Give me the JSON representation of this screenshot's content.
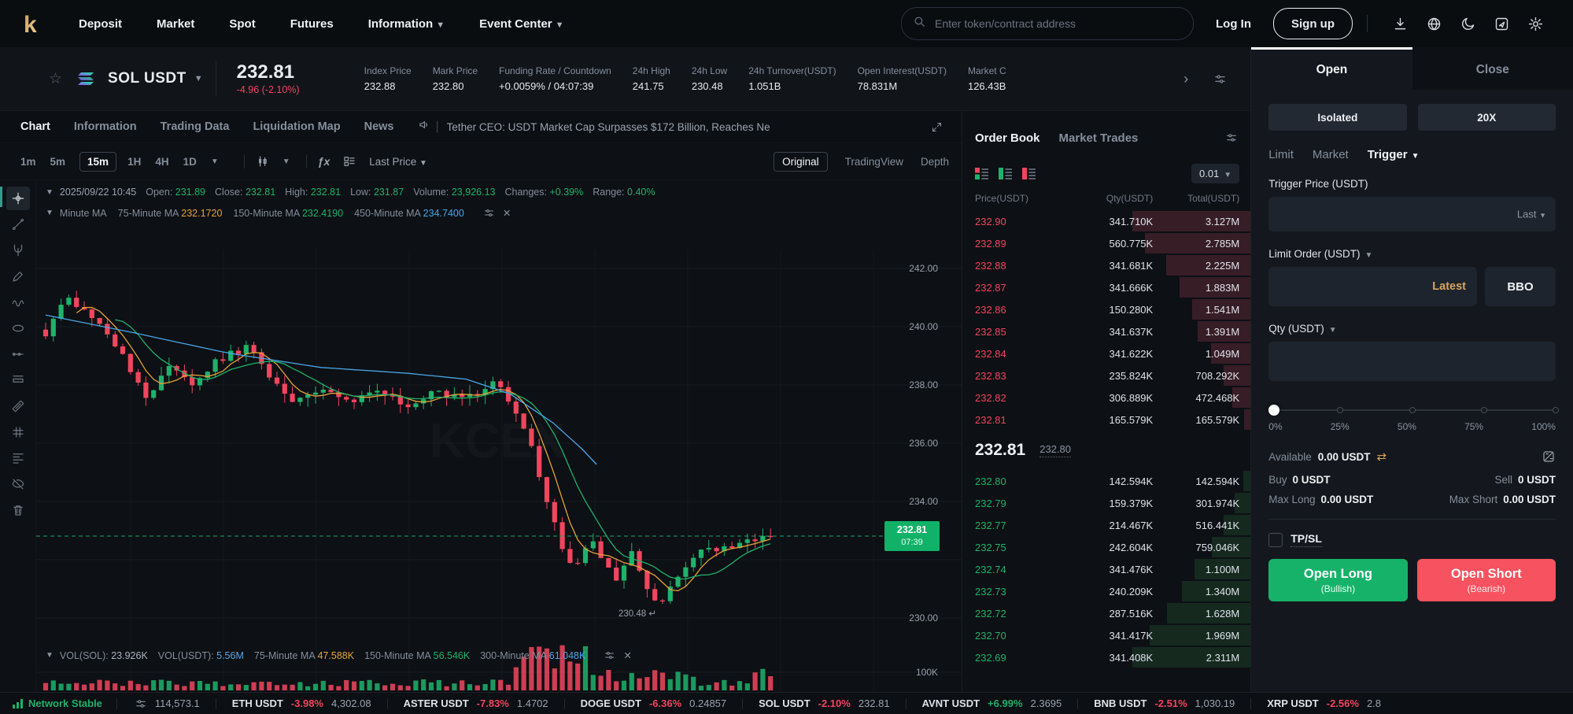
{
  "nav": {
    "brand": "KCEX",
    "menu": [
      {
        "label": "Deposit",
        "caret": false
      },
      {
        "label": "Market",
        "caret": false
      },
      {
        "label": "Spot",
        "caret": false
      },
      {
        "label": "Futures",
        "caret": false
      },
      {
        "label": "Information",
        "caret": true
      },
      {
        "label": "Event Center",
        "caret": true
      }
    ],
    "search_placeholder": "Enter token/contract address",
    "login_label": "Log In",
    "signup_label": "Sign up",
    "icons": [
      "download-icon",
      "language-globe-icon",
      "theme-moon-icon",
      "tutorial-icon",
      "settings-gear-icon"
    ]
  },
  "ticker": {
    "pair": "SOL USDT",
    "price": "232.81",
    "change": "-4.96 (-2.10%)",
    "stats": [
      {
        "label": "Index Price",
        "value": "232.88"
      },
      {
        "label": "Mark Price",
        "value": "232.80"
      },
      {
        "label": "Funding Rate / Countdown",
        "value": "+0.0059% / 04:07:39"
      },
      {
        "label": "24h High",
        "value": "241.75"
      },
      {
        "label": "24h Low",
        "value": "230.48"
      },
      {
        "label": "24h Turnover(USDT)",
        "value": "1.051B"
      },
      {
        "label": "Open Interest(USDT)",
        "value": "78.831M"
      },
      {
        "label": "Market C",
        "value": "126.43B"
      }
    ]
  },
  "chart": {
    "tabs": [
      "Chart",
      "Information",
      "Trading Data",
      "Liquidation Map",
      "News"
    ],
    "active_tab": "Chart",
    "news_text": "Tether CEO: USDT Market Cap Surpasses $172 Billion, Reaches Ne",
    "intervals": [
      "1m",
      "5m",
      "15m",
      "1H",
      "4H",
      "1D"
    ],
    "active_interval": "15m",
    "last_price_label": "Last Price",
    "view_modes": [
      "Original",
      "TradingView",
      "Depth"
    ],
    "active_view": "Original",
    "info": {
      "date": "2025/09/22 10:45",
      "items": [
        {
          "label": "Open:",
          "value": "231.89"
        },
        {
          "label": "Close:",
          "value": "232.81"
        },
        {
          "label": "High:",
          "value": "232.81"
        },
        {
          "label": "Low:",
          "value": "231.87"
        },
        {
          "label": "Volume:",
          "value": "23,926.13"
        },
        {
          "label": "Changes:",
          "value": "+0.39%"
        },
        {
          "label": "Range:",
          "value": "0.40%"
        }
      ]
    },
    "ma_row": [
      {
        "label": "Minute MA",
        "value": "",
        "color": ""
      },
      {
        "label": "75-Minute MA",
        "value": "232.1720",
        "color": "#e7a23b"
      },
      {
        "label": "150-Minute MA",
        "value": "232.4190",
        "color": "#1fb26b"
      },
      {
        "label": "450-Minute MA",
        "value": "234.7400",
        "color": "#49a7e9"
      }
    ],
    "vol_row": [
      {
        "label": "VOL(SOL):",
        "value": "23.926K",
        "color": "#aab2be"
      },
      {
        "label": "VOL(USDT):",
        "value": "5.56M",
        "color": "#58a6e6"
      },
      {
        "label": "75-Minute MA",
        "value": "47.588K",
        "color": "#e7a23b"
      },
      {
        "label": "150-Minute MA",
        "value": "56.546K",
        "color": "#1fb26b"
      },
      {
        "label": "300-Minute MA",
        "value": "61.048K",
        "color": "#49a7e9"
      }
    ],
    "watermark": "KCEX",
    "chart_data": {
      "type": "candlestick",
      "interval": "15m",
      "price_axis_ticks": [
        "242.00",
        "240.00",
        "238.00",
        "236.00",
        "234.00",
        "230.00"
      ],
      "volume_axis_tick": "100K",
      "current_price_badge": {
        "price": "232.81",
        "time": "07:39"
      },
      "low_marker": "230.48",
      "ylim": [
        229.5,
        242.5
      ],
      "candles": 95,
      "price_anchors": [
        [
          0,
          239.8
        ],
        [
          0.03,
          241.0
        ],
        [
          0.07,
          240.3
        ],
        [
          0.1,
          239.2
        ],
        [
          0.14,
          237.6
        ],
        [
          0.17,
          238.6
        ],
        [
          0.2,
          238.0
        ],
        [
          0.24,
          238.9
        ],
        [
          0.28,
          239.3
        ],
        [
          0.31,
          238.2
        ],
        [
          0.34,
          237.4
        ],
        [
          0.38,
          237.9
        ],
        [
          0.42,
          237.5
        ],
        [
          0.46,
          237.7
        ],
        [
          0.5,
          237.3
        ],
        [
          0.54,
          237.8
        ],
        [
          0.58,
          237.5
        ],
        [
          0.62,
          238.1
        ],
        [
          0.65,
          237.0
        ],
        [
          0.67,
          235.8
        ],
        [
          0.69,
          234.2
        ],
        [
          0.71,
          232.6
        ],
        [
          0.73,
          231.6
        ],
        [
          0.75,
          232.8
        ],
        [
          0.77,
          232.0
        ],
        [
          0.79,
          231.2
        ],
        [
          0.81,
          232.4
        ],
        [
          0.83,
          230.9
        ],
        [
          0.85,
          230.5
        ],
        [
          0.87,
          231.3
        ],
        [
          0.9,
          232.2
        ],
        [
          1.0,
          232.81
        ]
      ],
      "ma450_anchors": [
        [
          0,
          240.4
        ],
        [
          0.12,
          239.8
        ],
        [
          0.25,
          239.1
        ],
        [
          0.38,
          238.6
        ],
        [
          0.5,
          238.4
        ],
        [
          0.58,
          238.2
        ],
        [
          0.64,
          237.7
        ],
        [
          0.7,
          236.7
        ],
        [
          0.74,
          235.8
        ],
        [
          0.78,
          234.74
        ]
      ],
      "last_close": 232.81,
      "session_low": 230.48
    },
    "rail_tools": [
      "crosshair",
      "trendline",
      "pitchfork",
      "brush",
      "wave",
      "ellipse",
      "ray",
      "long-position",
      "ruler",
      "pattern",
      "fibonacci",
      "eye-off",
      "trash"
    ]
  },
  "orderbook": {
    "tabs": [
      "Order Book",
      "Market Trades"
    ],
    "active_tab": "Order Book",
    "precision": "0.01",
    "headers": [
      "Price(USDT)",
      "Qty(USDT)",
      "Total(USDT)"
    ],
    "asks": [
      [
        "232.90",
        "341.710K",
        "3.127M"
      ],
      [
        "232.89",
        "560.775K",
        "2.785M"
      ],
      [
        "232.88",
        "341.681K",
        "2.225M"
      ],
      [
        "232.87",
        "341.666K",
        "1.883M"
      ],
      [
        "232.86",
        "150.280K",
        "1.541M"
      ],
      [
        "232.85",
        "341.637K",
        "1.391M"
      ],
      [
        "232.84",
        "341.622K",
        "1.049M"
      ],
      [
        "232.83",
        "235.824K",
        "708.292K"
      ],
      [
        "232.82",
        "306.889K",
        "472.468K"
      ],
      [
        "232.81",
        "165.579K",
        "165.579K"
      ]
    ],
    "mid": {
      "last": "232.81",
      "mark": "232.80"
    },
    "bids": [
      [
        "232.80",
        "142.594K",
        "142.594K"
      ],
      [
        "232.79",
        "159.379K",
        "301.974K"
      ],
      [
        "232.77",
        "214.467K",
        "516.441K"
      ],
      [
        "232.75",
        "242.604K",
        "759.046K"
      ],
      [
        "232.74",
        "341.476K",
        "1.100M"
      ],
      [
        "232.73",
        "240.209K",
        "1.340M"
      ],
      [
        "232.72",
        "287.516K",
        "1.628M"
      ],
      [
        "232.70",
        "341.417K",
        "1.969M"
      ],
      [
        "232.69",
        "341.408K",
        "2.311M"
      ]
    ]
  },
  "trade_panel": {
    "tabs": [
      "Open",
      "Close"
    ],
    "active_tab": "Open",
    "margin_mode": "Isolated",
    "leverage": "20X",
    "order_types": [
      "Limit",
      "Market",
      "Trigger"
    ],
    "active_order_type": "Trigger",
    "trigger_price_label": "Trigger Price (USDT)",
    "trigger_price_ref": "Last",
    "limit_order_label": "Limit Order (USDT)",
    "latest_label": "Latest",
    "bbo_label": "BBO",
    "qty_label": "Qty (USDT)",
    "slider_labels": [
      "0%",
      "25%",
      "50%",
      "75%",
      "100%"
    ],
    "available_label": "Available",
    "available_value": "0.00 USDT",
    "buy_label": "Buy",
    "buy_value": "0 USDT",
    "sell_label": "Sell",
    "sell_value": "0 USDT",
    "max_long_label": "Max Long",
    "max_long_value": "0.00 USDT",
    "max_short_label": "Max Short",
    "max_short_value": "0.00 USDT",
    "tpsl_label": "TP/SL",
    "open_long": {
      "title": "Open Long",
      "sub": "(Bullish)"
    },
    "open_short": {
      "title": "Open Short",
      "sub": "(Bearish)"
    }
  },
  "bottom_bar": {
    "network_label": "Network Stable",
    "counter": "114,573.1",
    "pairs": [
      {
        "name": "ETH USDT",
        "change": "-3.98%",
        "price": "4,302.08",
        "dir": "down"
      },
      {
        "name": "ASTER USDT",
        "change": "-7.83%",
        "price": "1.4702",
        "dir": "down"
      },
      {
        "name": "DOGE USDT",
        "change": "-6.36%",
        "price": "0.24857",
        "dir": "down"
      },
      {
        "name": "SOL USDT",
        "change": "-2.10%",
        "price": "232.81",
        "dir": "down"
      },
      {
        "name": "AVNT USDT",
        "change": "+6.99%",
        "price": "2.3695",
        "dir": "up"
      },
      {
        "name": "BNB USDT",
        "change": "-2.51%",
        "price": "1,030.19",
        "dir": "down"
      },
      {
        "name": "XRP USDT",
        "change": "-2.56%",
        "price": "2.8",
        "dir": "down"
      }
    ]
  },
  "colors": {
    "green": "#1fb26b",
    "red": "#f1455f",
    "gold": "#d8a55e",
    "blue": "#49a7e9",
    "orange": "#e7a23b",
    "badge_green": "#12b168"
  }
}
